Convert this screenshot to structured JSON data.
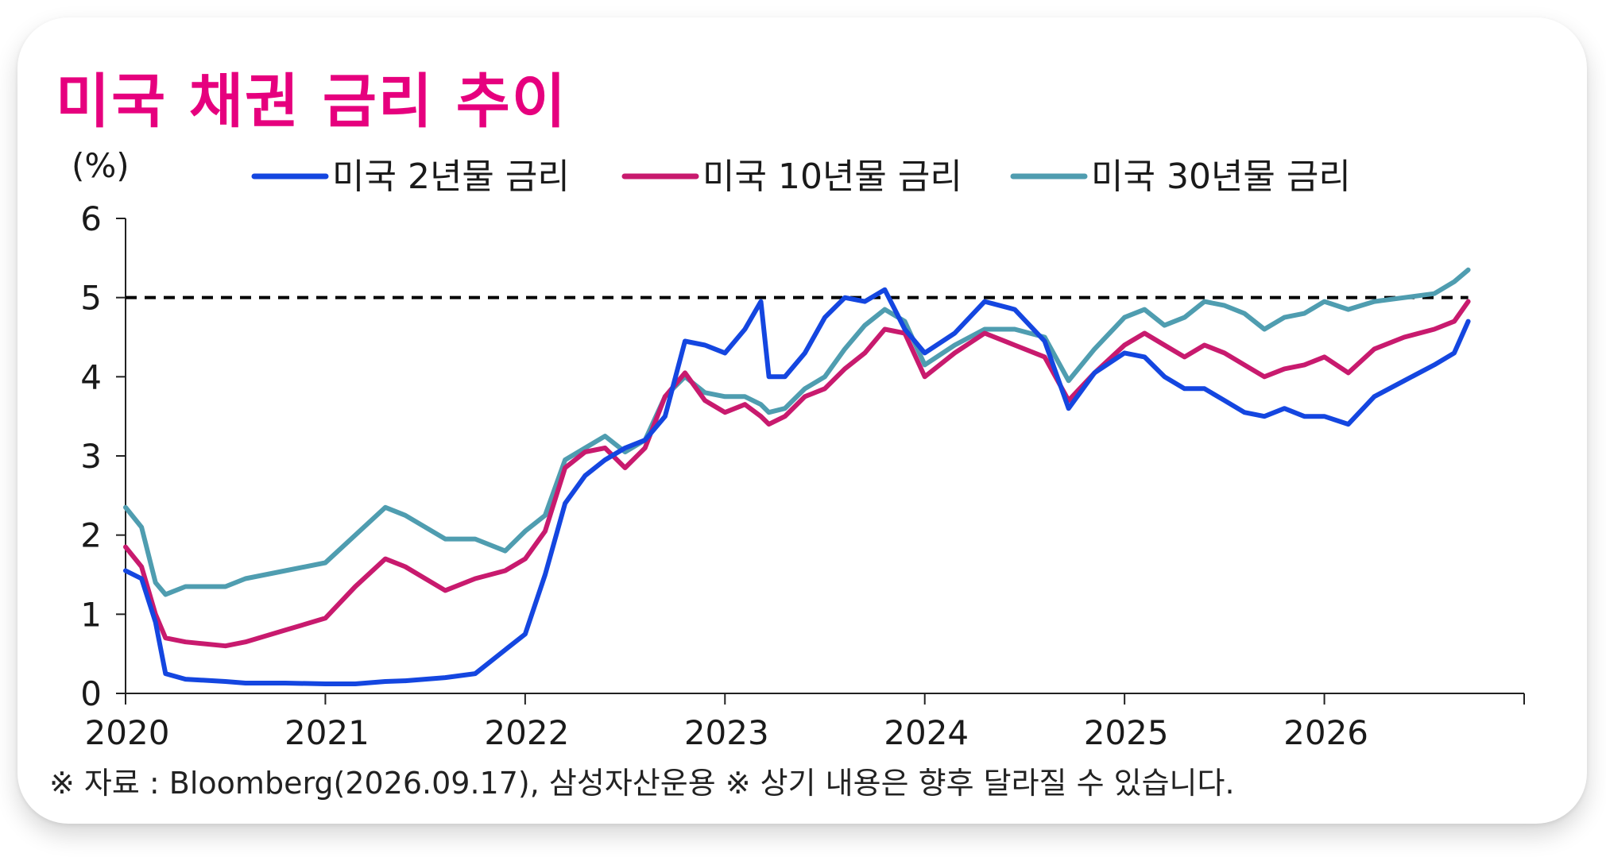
{
  "title": "미국 채권 금리 추이",
  "footnote": "※ 자료 : Bloomberg(2026.09.17), 삼성자산운용 ※ 상기 내용은 향후 달라질 수 있습니다.",
  "colors": {
    "title": "#e6007e",
    "us2y": "#1446e0",
    "us10y": "#c81a6e",
    "us30y": "#4f9db0",
    "reference": "#000000"
  },
  "chart_data": {
    "type": "line",
    "ylabel": "(%)",
    "xlabel": "",
    "ylim": [
      0,
      6
    ],
    "yticks": [
      "0",
      "1",
      "2",
      "3",
      "4",
      "5",
      "6"
    ],
    "xlim": [
      2020.0,
      2027.0
    ],
    "xticks": [
      "2020",
      "2021",
      "2022",
      "2023",
      "2024",
      "2025",
      "2026"
    ],
    "reference_line": 5,
    "legend_position": "top",
    "grid": false,
    "x": [
      2020.0,
      2020.08,
      2020.15,
      2020.2,
      2020.3,
      2020.5,
      2020.6,
      2020.8,
      2021.0,
      2021.15,
      2021.3,
      2021.4,
      2021.6,
      2021.75,
      2021.9,
      2022.0,
      2022.1,
      2022.2,
      2022.3,
      2022.4,
      2022.5,
      2022.6,
      2022.7,
      2022.8,
      2022.9,
      2023.0,
      2023.1,
      2023.18,
      2023.22,
      2023.3,
      2023.4,
      2023.5,
      2023.6,
      2023.7,
      2023.8,
      2023.9,
      2024.0,
      2024.15,
      2024.3,
      2024.45,
      2024.6,
      2024.72,
      2024.85,
      2025.0,
      2025.1,
      2025.2,
      2025.3,
      2025.4,
      2025.5,
      2025.6,
      2025.7,
      2025.8,
      2025.9,
      2026.0,
      2026.12,
      2026.25,
      2026.4,
      2026.55,
      2026.65,
      2026.72
    ],
    "series": [
      {
        "name": "미국 2년물 금리",
        "values": [
          1.55,
          1.45,
          0.9,
          0.25,
          0.18,
          0.15,
          0.13,
          0.13,
          0.12,
          0.12,
          0.15,
          0.16,
          0.2,
          0.25,
          0.55,
          0.75,
          1.5,
          2.4,
          2.75,
          2.95,
          3.1,
          3.2,
          3.5,
          4.45,
          4.4,
          4.3,
          4.6,
          4.95,
          4.0,
          4.0,
          4.3,
          4.75,
          5.0,
          4.95,
          5.1,
          4.6,
          4.3,
          4.55,
          4.95,
          4.85,
          4.45,
          3.6,
          4.05,
          4.3,
          4.25,
          4.0,
          3.85,
          3.85,
          3.7,
          3.55,
          3.5,
          3.6,
          3.5,
          3.5,
          3.4,
          3.75,
          3.95,
          4.15,
          4.3,
          4.7
        ]
      },
      {
        "name": "미국 10년물 금리",
        "values": [
          1.85,
          1.6,
          1.0,
          0.7,
          0.65,
          0.6,
          0.65,
          0.8,
          0.95,
          1.35,
          1.7,
          1.6,
          1.3,
          1.45,
          1.55,
          1.7,
          2.05,
          2.85,
          3.05,
          3.1,
          2.85,
          3.1,
          3.75,
          4.05,
          3.7,
          3.55,
          3.65,
          3.5,
          3.4,
          3.5,
          3.75,
          3.85,
          4.1,
          4.3,
          4.6,
          4.55,
          4.0,
          4.3,
          4.55,
          4.4,
          4.25,
          3.7,
          4.05,
          4.4,
          4.55,
          4.4,
          4.25,
          4.4,
          4.3,
          4.15,
          4.0,
          4.1,
          4.15,
          4.25,
          4.05,
          4.35,
          4.5,
          4.6,
          4.7,
          4.95
        ]
      },
      {
        "name": "미국 30년물 금리",
        "values": [
          2.35,
          2.1,
          1.4,
          1.25,
          1.35,
          1.35,
          1.45,
          1.55,
          1.65,
          2.0,
          2.35,
          2.25,
          1.95,
          1.95,
          1.8,
          2.05,
          2.25,
          2.95,
          3.1,
          3.25,
          3.05,
          3.2,
          3.75,
          4.0,
          3.8,
          3.75,
          3.75,
          3.65,
          3.55,
          3.6,
          3.85,
          4.0,
          4.35,
          4.65,
          4.85,
          4.7,
          4.15,
          4.4,
          4.6,
          4.6,
          4.5,
          3.95,
          4.35,
          4.75,
          4.85,
          4.65,
          4.75,
          4.95,
          4.9,
          4.8,
          4.6,
          4.75,
          4.8,
          4.95,
          4.85,
          4.95,
          5.0,
          5.05,
          5.2,
          5.35
        ]
      }
    ]
  }
}
